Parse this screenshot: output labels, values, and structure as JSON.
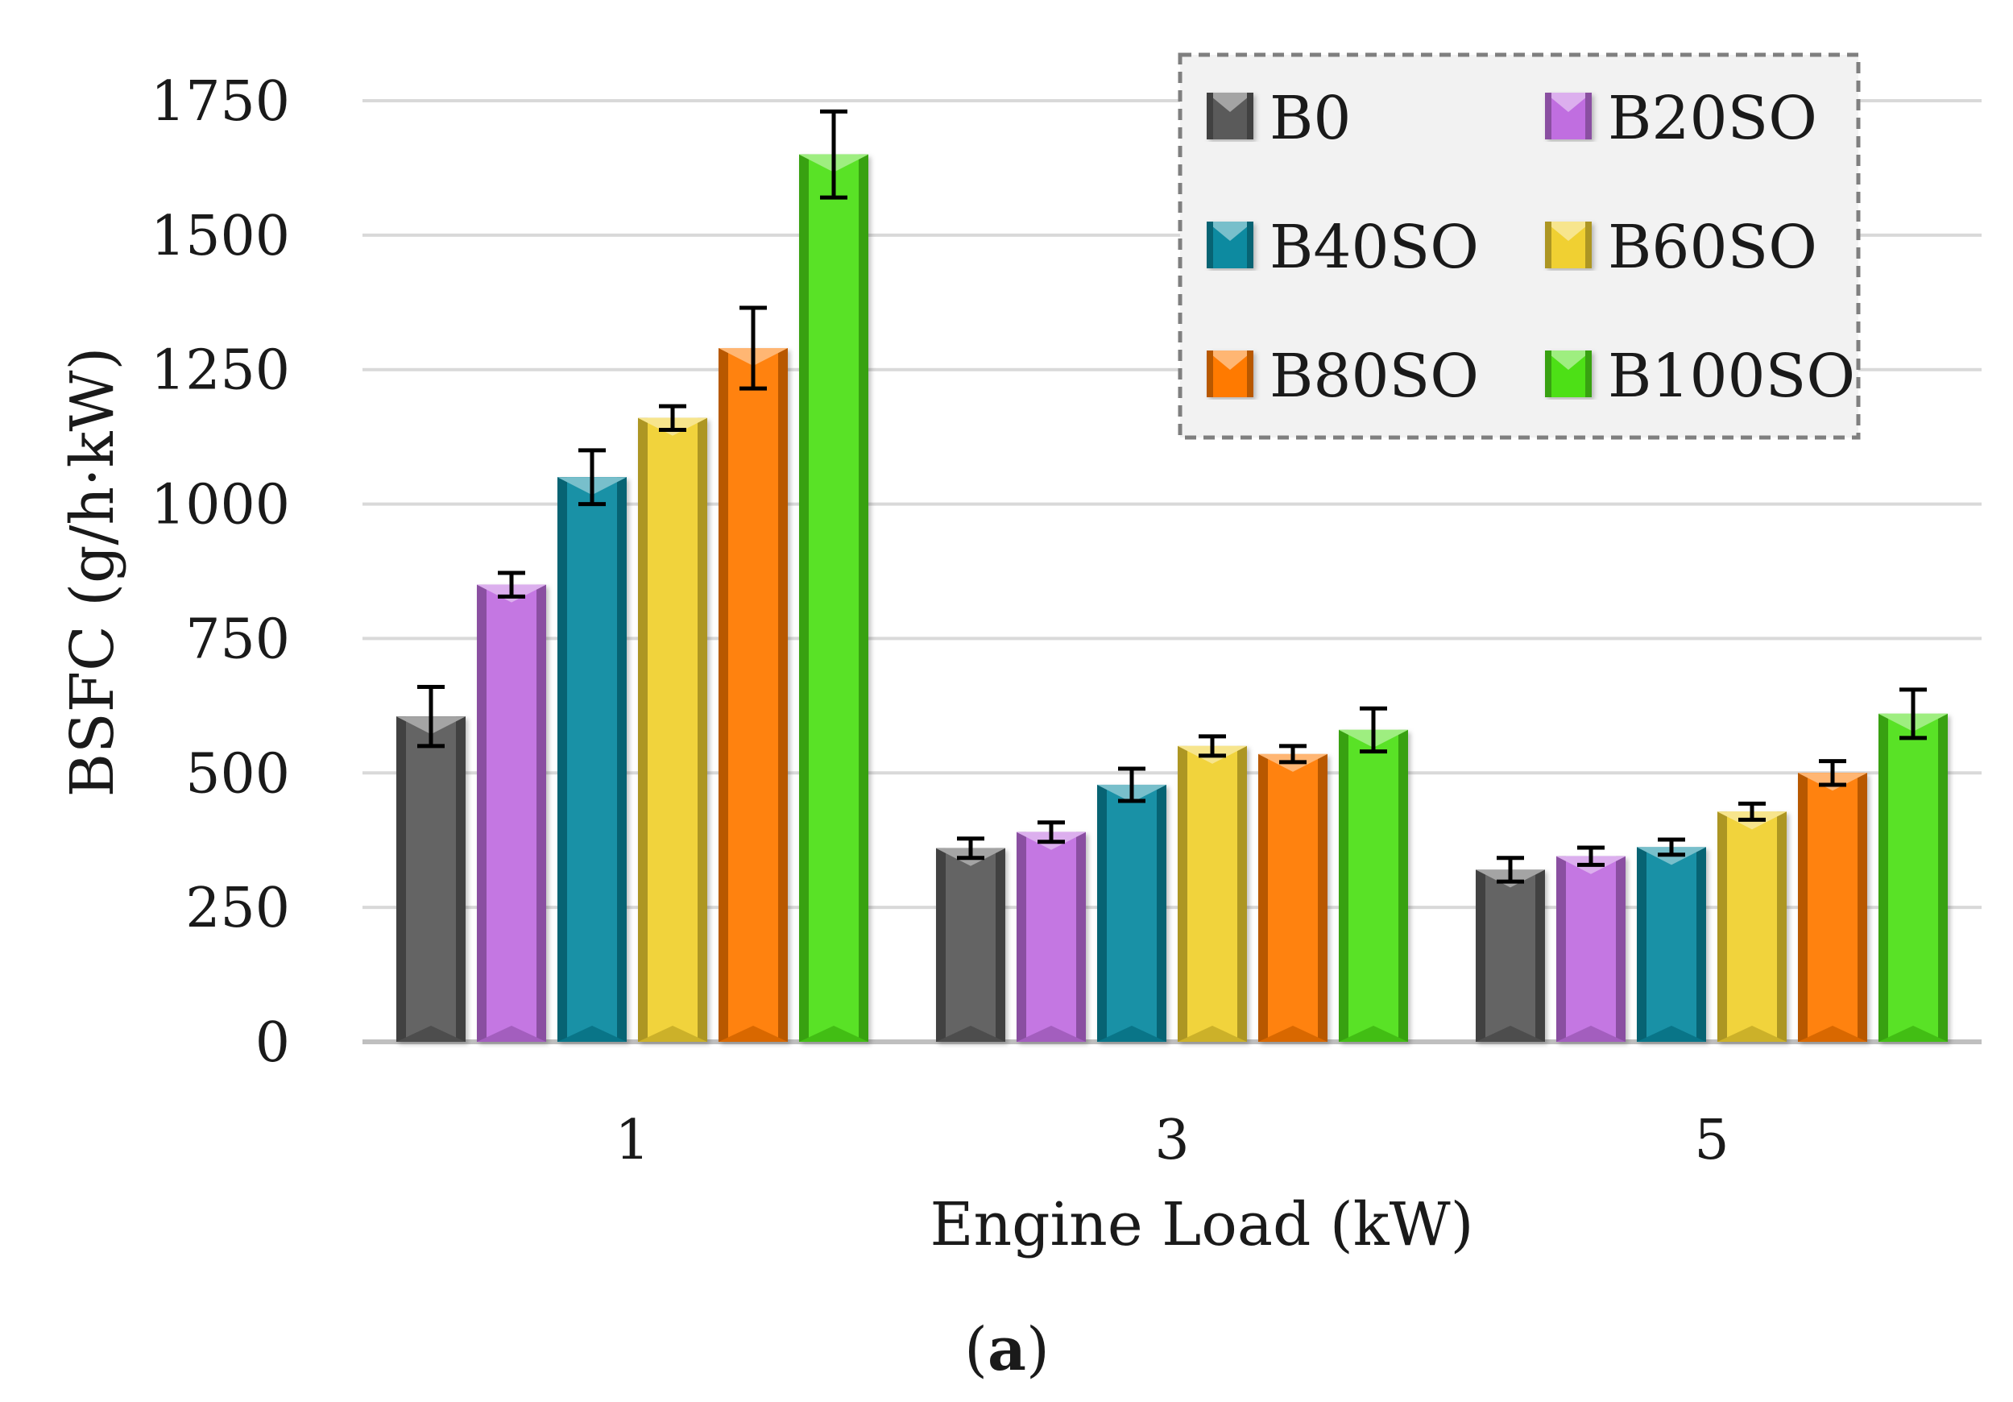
{
  "chart_data": {
    "type": "bar",
    "title": "",
    "panel_label": {
      "open": "(",
      "letter": "a",
      "close": ")"
    },
    "xlabel": "Engine Load (kW)",
    "ylabel": "BSFC (g/h·kW)",
    "categories": [
      "1",
      "3",
      "5"
    ],
    "ylim": [
      0,
      1750
    ],
    "yticks": [
      0,
      250,
      500,
      750,
      1000,
      1250,
      1500,
      1750
    ],
    "grid": true,
    "legend_position": "top-right",
    "series": [
      {
        "name": "B0",
        "color": "#5a5a5a",
        "values": [
          605,
          360,
          320
        ],
        "errors": [
          55,
          18,
          22
        ]
      },
      {
        "name": "B20SO",
        "color": "#c06ee0",
        "values": [
          850,
          390,
          345
        ],
        "errors": [
          22,
          18,
          16
        ]
      },
      {
        "name": "B40SO",
        "color": "#0a8aa0",
        "values": [
          1050,
          478,
          362
        ],
        "errors": [
          50,
          30,
          14
        ]
      },
      {
        "name": "B60SO",
        "color": "#f0d030",
        "values": [
          1160,
          550,
          428
        ],
        "errors": [
          22,
          18,
          15
        ]
      },
      {
        "name": "B80SO",
        "color": "#ff7a00",
        "values": [
          1290,
          535,
          500
        ],
        "errors": [
          75,
          15,
          22
        ]
      },
      {
        "name": "B100SO",
        "color": "#4ee018",
        "values": [
          1650,
          580,
          610
        ],
        "errors": [
          80,
          40,
          45
        ]
      }
    ]
  }
}
